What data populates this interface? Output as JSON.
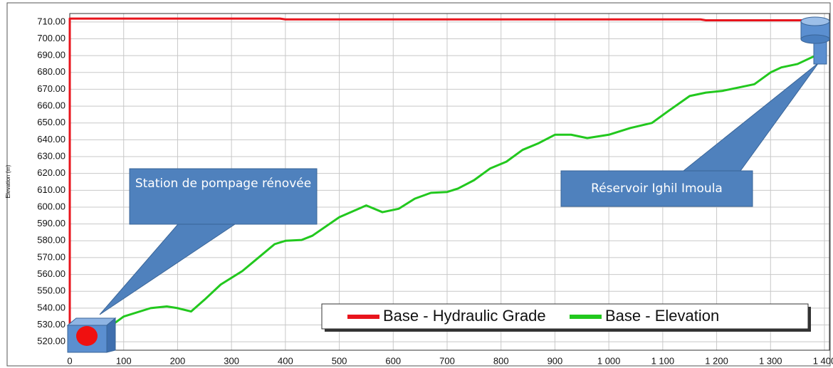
{
  "chart_data": {
    "type": "line",
    "y_label": "Elevation (m)",
    "xlim": [
      0,
      1400
    ],
    "ylim": [
      515,
      715
    ],
    "xticks": [
      0,
      100,
      200,
      300,
      400,
      500,
      600,
      700,
      800,
      900,
      {
        "value": 1000,
        "label": "1 000"
      },
      {
        "value": 1100,
        "label": "1 100"
      },
      {
        "value": 1200,
        "label": "1 200"
      },
      {
        "value": 1300,
        "label": "1 300"
      },
      {
        "value": 1400,
        "label": "1 400"
      }
    ],
    "yticks": [
      {
        "value": 520,
        "label": "520.00"
      },
      {
        "value": 530,
        "label": "530.00"
      },
      {
        "value": 540,
        "label": "540.00"
      },
      {
        "value": 550,
        "label": "550.00"
      },
      {
        "value": 560,
        "label": "560.00"
      },
      {
        "value": 570,
        "label": "570.00"
      },
      {
        "value": 580,
        "label": "580.00"
      },
      {
        "value": 590,
        "label": "590.00"
      },
      {
        "value": 600,
        "label": "600.00"
      },
      {
        "value": 610,
        "label": "610.00"
      },
      {
        "value": 620,
        "label": "620.00"
      },
      {
        "value": 630,
        "label": "630.00"
      },
      {
        "value": 640,
        "label": "640.00"
      },
      {
        "value": 650,
        "label": "650.00"
      },
      {
        "value": 660,
        "label": "660.00"
      },
      {
        "value": 670,
        "label": "670.00"
      },
      {
        "value": 680,
        "label": "680.00"
      },
      {
        "value": 690,
        "label": "690.00"
      },
      {
        "value": 700,
        "label": "700.00"
      },
      {
        "value": 710,
        "label": "710.00"
      }
    ],
    "grid": true,
    "series": [
      {
        "name": "Base - Hydraulic Grade",
        "color": "#e8141c",
        "x": [
          0,
          0,
          390,
          400,
          1170,
          1180,
          1390
        ],
        "values": [
          520,
          712,
          712,
          711.5,
          711.5,
          711,
          711
        ]
      },
      {
        "name": "Base - Elevation",
        "color": "#22c81e",
        "x": [
          70,
          100,
          150,
          180,
          200,
          225,
          250,
          280,
          320,
          350,
          380,
          400,
          430,
          450,
          500,
          550,
          580,
          610,
          640,
          670,
          700,
          720,
          750,
          780,
          810,
          840,
          870,
          900,
          930,
          960,
          1000,
          1040,
          1080,
          1110,
          1150,
          1180,
          1210,
          1240,
          1270,
          1300,
          1320,
          1350,
          1390
        ],
        "values": [
          528,
          535,
          540,
          541,
          540,
          538,
          545,
          554,
          562,
          570,
          578,
          580,
          580.5,
          583,
          594,
          601,
          597,
          599,
          605,
          608.5,
          609,
          611,
          616,
          623,
          627,
          634,
          638,
          643,
          643,
          641,
          643,
          647,
          650,
          657,
          666,
          668,
          669,
          671,
          673,
          680,
          683,
          685,
          691
        ]
      }
    ],
    "annotations": [
      "Station de pompage rénovée",
      "Réservoir Ighil Imoula"
    ]
  }
}
